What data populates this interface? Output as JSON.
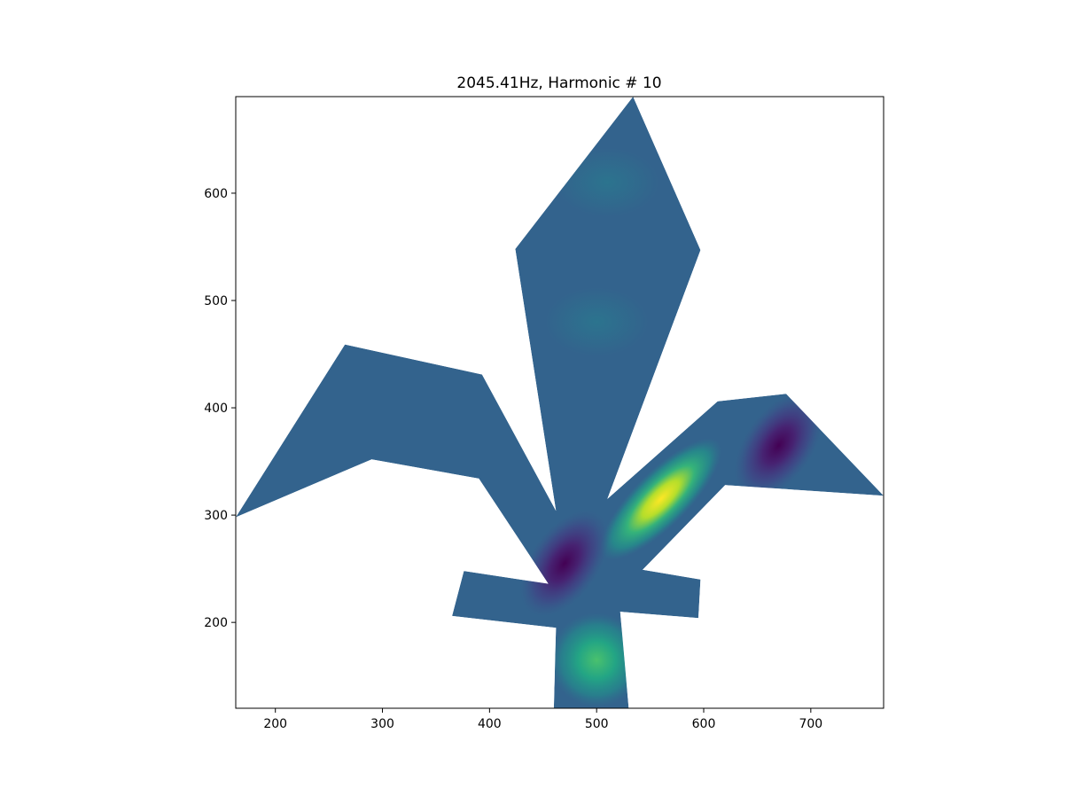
{
  "chart_data": {
    "type": "heatmap",
    "title": "2045.41Hz, Harmonic # 10",
    "xlabel": "",
    "ylabel": "",
    "xlim": [
      163,
      768
    ],
    "ylim": [
      120,
      690
    ],
    "x_ticks": [
      200,
      300,
      400,
      500,
      600,
      700
    ],
    "y_ticks": [
      200,
      300,
      400,
      500,
      600
    ],
    "grid": false,
    "colormap": "viridis",
    "background_color": "#33638d",
    "shape_outline": [
      [
        534,
        690
      ],
      [
        597,
        547
      ],
      [
        510,
        315
      ],
      [
        613,
        406
      ],
      [
        677,
        413
      ],
      [
        768,
        318
      ],
      [
        620,
        328
      ],
      [
        543,
        249
      ],
      [
        597,
        240
      ],
      [
        595,
        204
      ],
      [
        522,
        210
      ],
      [
        530,
        120
      ],
      [
        460,
        120
      ],
      [
        462,
        195
      ],
      [
        365,
        206
      ],
      [
        376,
        248
      ],
      [
        455,
        236
      ],
      [
        390,
        334
      ],
      [
        290,
        352
      ],
      [
        163,
        298
      ],
      [
        265,
        459
      ],
      [
        393,
        431
      ],
      [
        462,
        304
      ],
      [
        424,
        548
      ]
    ],
    "hotspots": [
      {
        "x": 560,
        "y": 315,
        "level": "high",
        "color": "#fde725"
      },
      {
        "x": 500,
        "y": 165,
        "level": "mid-high",
        "color": "#35b779"
      },
      {
        "x": 470,
        "y": 255,
        "level": "low",
        "color": "#440154"
      },
      {
        "x": 670,
        "y": 365,
        "level": "low",
        "color": "#440154"
      },
      {
        "x": 510,
        "y": 610,
        "level": "slightly-high",
        "color": "#2a788e"
      },
      {
        "x": 500,
        "y": 480,
        "level": "slightly-high",
        "color": "#2a788e"
      }
    ]
  }
}
